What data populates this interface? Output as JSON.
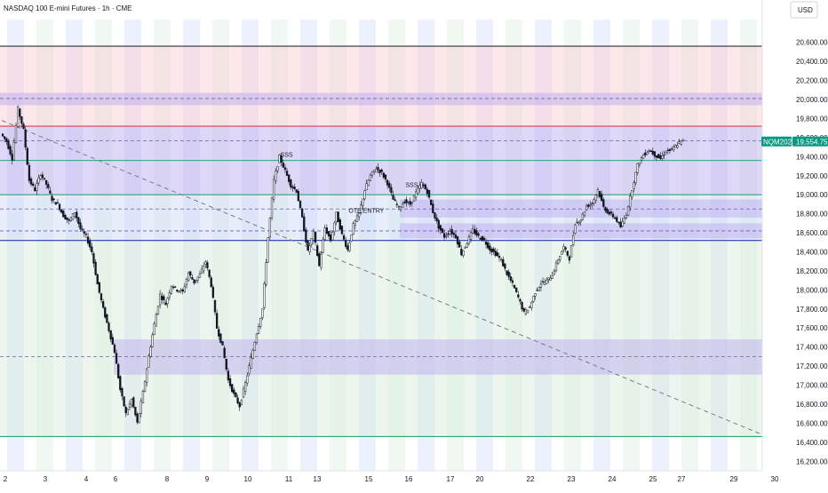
{
  "header": {
    "title": "NASDAQ 100 E-mini Futures · 1h · CME",
    "currency": "USD"
  },
  "price_badge": {
    "symbol": "NQM2025",
    "price": "19,554.75",
    "color": "#089981"
  },
  "colors": {
    "up": "#131722",
    "down": "#131722",
    "pink_zone": "#f8c9d0",
    "purple_zone": "#b9a7ee",
    "blue_zone": "#c9d6f7",
    "green_zone": "#d5ecd9",
    "red_line": "#e03e4c",
    "green_line": "#2ea66f",
    "blue_line": "#1e3fa8",
    "black_line": "#131722",
    "session_blue": "#dfe6fb",
    "session_green": "#e6f3e8"
  },
  "chart_data": {
    "type": "candlestick",
    "title": "NASDAQ 100 E-mini Futures · 1h · CME",
    "y_axis": {
      "range": [
        16100,
        20840
      ],
      "ticks": [
        "20,600.00",
        "20,400.00",
        "20,200.00",
        "20,000.00",
        "19,800.00",
        "19,600.00",
        "19,400.00",
        "19,200.00",
        "19,000.00",
        "18,800.00",
        "18,600.00",
        "18,400.00",
        "18,200.00",
        "18,000.00",
        "17,800.00",
        "17,600.00",
        "17,400.00",
        "17,200.00",
        "17,000.00",
        "16,800.00",
        "16,600.00",
        "16,400.00",
        "16,200.00"
      ],
      "tick_values": [
        20600,
        20400,
        20200,
        20000,
        19800,
        19600,
        19400,
        19200,
        19000,
        18800,
        18600,
        18400,
        18200,
        18000,
        17800,
        17600,
        17400,
        17200,
        17000,
        16800,
        16600,
        16400,
        16200
      ]
    },
    "x_axis": {
      "ticks": [
        "2",
        "3",
        "4",
        "6",
        "8",
        "9",
        "10",
        "11",
        "13",
        "15",
        "16",
        "17",
        "20",
        "22",
        "23",
        "24",
        "25",
        "27",
        "29",
        "30"
      ]
    },
    "last_price": 19554.75,
    "price_path": [
      19640,
      19560,
      19380,
      19900,
      19680,
      19150,
      19050,
      19220,
      19110,
      18950,
      18900,
      18780,
      18720,
      18820,
      18640,
      18560,
      18400,
      18060,
      17800,
      17580,
      17350,
      16950,
      16700,
      16850,
      16600,
      16920,
      17300,
      17640,
      17950,
      17850,
      18050,
      18000,
      17980,
      18180,
      18080,
      18160,
      18300,
      18050,
      17600,
      17400,
      17050,
      16900,
      16780,
      17020,
      17280,
      17550,
      17800,
      18550,
      19150,
      19400,
      19250,
      19100,
      19040,
      18750,
      18400,
      18600,
      18250,
      18650,
      18520,
      18800,
      18580,
      18420,
      18680,
      18800,
      19050,
      19200,
      19280,
      19230,
      19120,
      18950,
      18860,
      18930,
      18900,
      19020,
      19120,
      19030,
      18820,
      18660,
      18560,
      18620,
      18560,
      18380,
      18500,
      18630,
      18560,
      18520,
      18430,
      18380,
      18310,
      18170,
      18060,
      17920,
      17760,
      17820,
      17980,
      18070,
      18090,
      18160,
      18320,
      18450,
      18330,
      18700,
      18740,
      18880,
      18910,
      19050,
      18870,
      18800,
      18760,
      18660,
      18800,
      19060,
      19310,
      19420,
      19470,
      19420,
      19380,
      19460,
      19470,
      19530,
      19570
    ],
    "levels": [
      {
        "label": "",
        "price": 20560,
        "style": "solid",
        "color": "black_line"
      },
      {
        "label": "",
        "price": 20010,
        "style": "dashed",
        "color": "purple_zone"
      },
      {
        "label": "",
        "price": 19720,
        "style": "solid",
        "color": "red_line"
      },
      {
        "label": "",
        "price": 19565,
        "style": "dashed",
        "color": "purple_zone"
      },
      {
        "label": "",
        "price": 19360,
        "style": "solid",
        "color": "green_line"
      },
      {
        "label": "",
        "price": 19000,
        "style": "solid",
        "color": "green_line"
      },
      {
        "label": "",
        "price": 18850,
        "style": "dashed",
        "color": "purple_zone"
      },
      {
        "label": "",
        "price": 18620,
        "style": "dashed",
        "color": "purple_zone"
      },
      {
        "label": "",
        "price": 18520,
        "style": "solid",
        "color": "blue_line"
      },
      {
        "label": "",
        "price": 17300,
        "style": "dashed",
        "color": "purple_zone"
      },
      {
        "label": "",
        "price": 16460,
        "style": "solid",
        "color": "green_line"
      }
    ],
    "zones": [
      {
        "from": 19720,
        "to": 20560,
        "color": "pink_zone"
      },
      {
        "from": 19940,
        "to": 20070,
        "color": "purple_zone"
      },
      {
        "from": 19000,
        "to": 19720,
        "color": "purple_zone"
      },
      {
        "from": 18520,
        "to": 19000,
        "color": "blue_zone"
      },
      {
        "from": 16460,
        "to": 18520,
        "color": "green_zone"
      },
      {
        "from": 17110,
        "to": 17480,
        "color": "purple_zone"
      },
      {
        "from": 18760,
        "to": 18950,
        "color": "purple_zone"
      },
      {
        "from": 18540,
        "to": 18700,
        "color": "purple_zone"
      }
    ],
    "annotations": [
      {
        "text": "OTE ENTRY",
        "x_index": 61,
        "price": 18810
      },
      {
        "text": "SSS",
        "x_index": 49,
        "price": 19400
      },
      {
        "text": "SSS",
        "x_index": 71,
        "price": 19080
      }
    ],
    "trendline": {
      "from_index": 0,
      "from_price": 19780,
      "to_index": 140,
      "to_price": 16480,
      "style": "dashed"
    },
    "grid": false,
    "legend": "none"
  }
}
